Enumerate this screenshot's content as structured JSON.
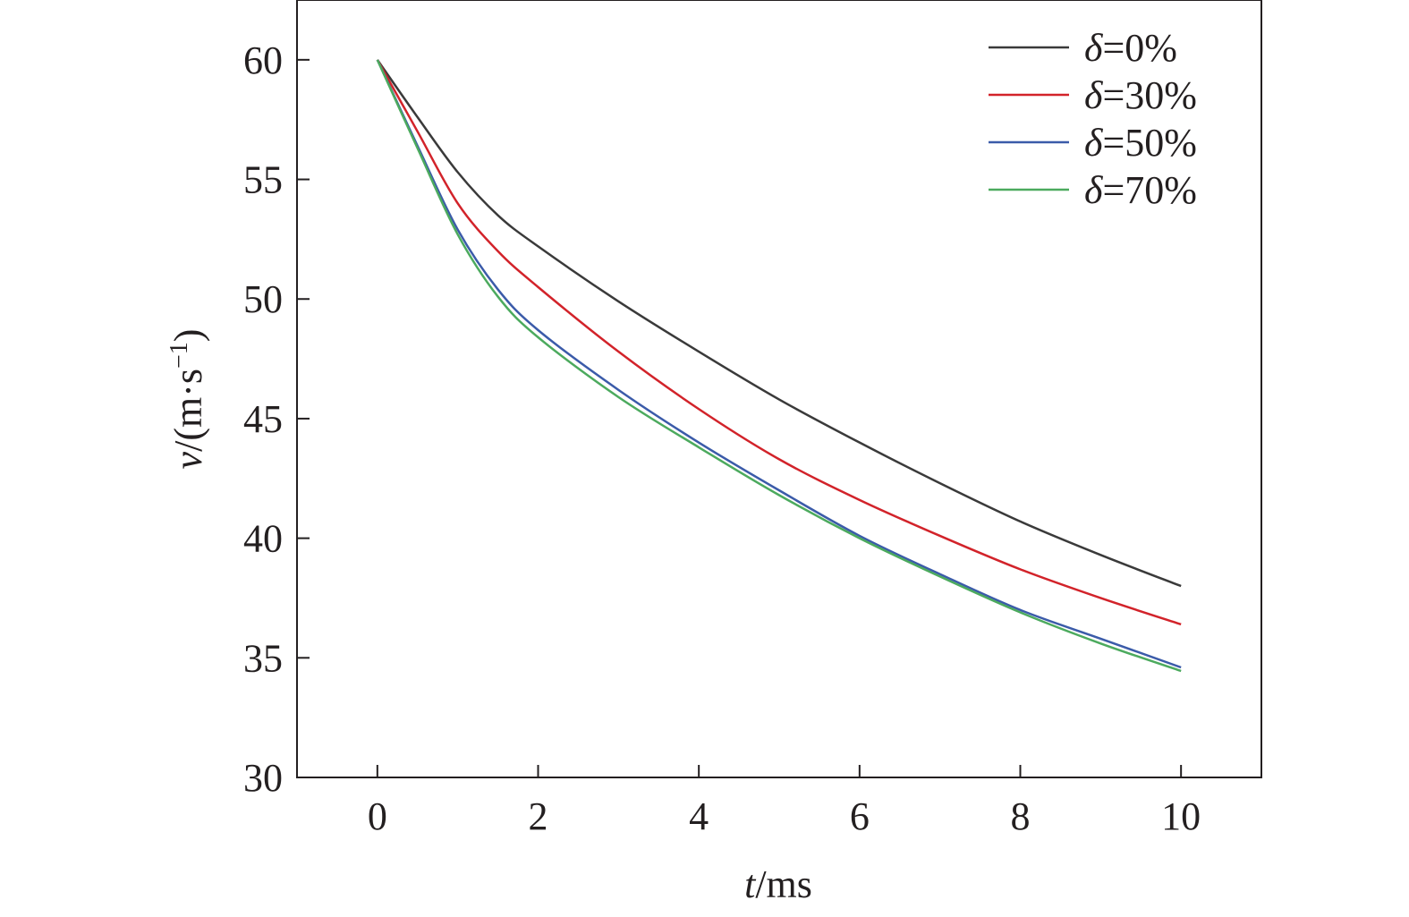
{
  "chart_data": {
    "type": "line",
    "title": "",
    "xlabel": {
      "var": "t",
      "unit": "/ms"
    },
    "ylabel": {
      "var": "v",
      "unit": "/(m·s",
      "sup": "−1",
      "close": ")"
    },
    "xlim": [
      -1,
      11
    ],
    "ylim": [
      30,
      62.5
    ],
    "xticks": [
      0,
      2,
      4,
      6,
      8,
      10
    ],
    "yticks": [
      30,
      35,
      40,
      45,
      50,
      55,
      60
    ],
    "grid": false,
    "legend_position": "top-right",
    "series": [
      {
        "name": "δ=0%",
        "color": "#3a3a3a",
        "x": [
          0,
          0.5,
          1,
          1.5,
          2,
          3,
          4,
          5,
          6,
          7,
          8,
          9,
          10
        ],
        "y": [
          60,
          57.6,
          55.3,
          53.5,
          52.2,
          49.9,
          47.8,
          45.8,
          44.0,
          42.3,
          40.7,
          39.3,
          38.0
        ]
      },
      {
        "name": "δ=30%",
        "color": "#d2232a",
        "x": [
          0,
          0.5,
          1,
          1.5,
          2,
          3,
          4,
          5,
          6,
          7,
          8,
          9,
          10
        ],
        "y": [
          60,
          57.0,
          54.0,
          52.0,
          50.5,
          47.8,
          45.4,
          43.3,
          41.6,
          40.1,
          38.7,
          37.5,
          36.4
        ]
      },
      {
        "name": "δ=50%",
        "color": "#3b5ba9",
        "x": [
          0,
          0.5,
          1,
          1.5,
          2,
          3,
          4,
          5,
          6,
          7,
          8,
          9,
          10
        ],
        "y": [
          60,
          56.4,
          52.9,
          50.4,
          48.7,
          46.2,
          44.0,
          42.0,
          40.1,
          38.5,
          37.0,
          35.8,
          34.6
        ]
      },
      {
        "name": "δ=70%",
        "color": "#4caa5e",
        "x": [
          0,
          0.5,
          1,
          1.5,
          2,
          3,
          4,
          5,
          6,
          7,
          8,
          9,
          10
        ],
        "y": [
          60,
          56.3,
          52.7,
          50.1,
          48.4,
          45.9,
          43.8,
          41.8,
          40.0,
          38.4,
          36.9,
          35.6,
          34.45
        ]
      }
    ]
  }
}
